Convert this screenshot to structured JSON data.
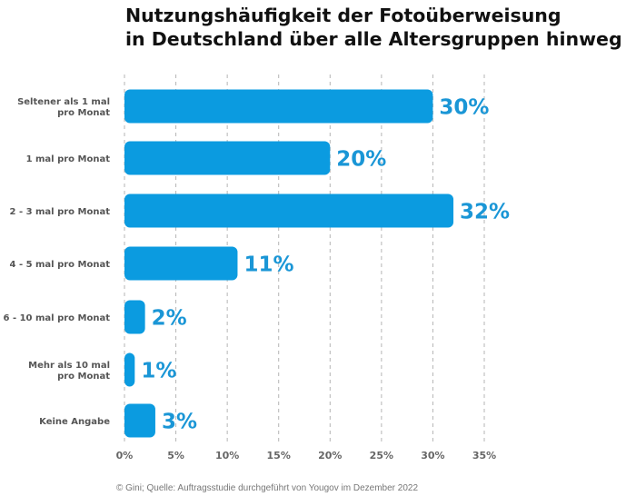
{
  "title": {
    "line1": "Nutzungshäufigkeit der Fotoüberweisung",
    "line2": "in Deutschland über alle Altersgruppen hinweg"
  },
  "footer": "© Gini; Quelle: Auftragsstudie durchgeführt von Yougov im Dezember 2022",
  "colors": {
    "bar": "#0b9be0",
    "value_label": "#1a96d6",
    "category_label": "#555555",
    "tick_label": "#666666",
    "grid": "#b5b5b5"
  },
  "chart_data": {
    "type": "bar",
    "orientation": "horizontal",
    "title": "Nutzungshäufigkeit der Fotoüberweisung in Deutschland über alle Altersgruppen hinweg",
    "categories": [
      [
        "Seltener als 1 mal",
        "pro Monat"
      ],
      [
        "1 mal pro Monat"
      ],
      [
        "2 - 3 mal pro Monat"
      ],
      [
        "4 - 5 mal pro Monat"
      ],
      [
        "6 - 10 mal pro Monat"
      ],
      [
        "Mehr als 10 mal",
        "pro Monat"
      ],
      [
        "Keine Angabe"
      ]
    ],
    "values": [
      30,
      20,
      32,
      11,
      2,
      1,
      3
    ],
    "value_labels": [
      "30%",
      "20%",
      "32%",
      "11%",
      "2%",
      "1%",
      "3%"
    ],
    "xlim": [
      0,
      35
    ],
    "x_ticks": [
      0,
      5,
      10,
      15,
      20,
      25,
      30,
      35
    ],
    "x_tick_labels": [
      "0%",
      "5%",
      "10%",
      "15%",
      "20%",
      "25%",
      "30%",
      "35%"
    ],
    "grid": true,
    "grid_style": "dashed-vertical",
    "legend": "none"
  }
}
